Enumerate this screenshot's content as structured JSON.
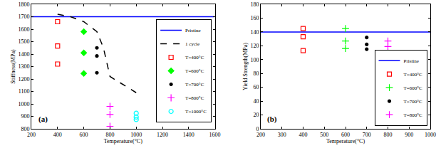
{
  "chart_data": [
    {
      "type": "scatter",
      "x_label": "Temperature(°C)",
      "y_label": "Stiffness(MPa)",
      "annotations": [
        {
          "text": "(a)"
        }
      ],
      "xlim": [
        200,
        1600
      ],
      "xticks": [
        200,
        400,
        600,
        800,
        1000,
        1200,
        1400,
        1600
      ],
      "ylim": [
        800,
        1800
      ],
      "yticks": [
        800,
        900,
        1000,
        1100,
        1200,
        1300,
        1400,
        1500,
        1600,
        1700,
        1800
      ],
      "grid": false,
      "legend": "upper right",
      "series": [
        {
          "name": "Pristine",
          "type": "line",
          "color": "#0000ff",
          "line_style": "solid",
          "x": [
            200,
            1600
          ],
          "values": [
            1700,
            1700
          ]
        },
        {
          "name": "1 cycle",
          "type": "line",
          "color": "#000000",
          "line_style": "dash",
          "x": [
            400,
            500,
            600,
            700,
            750,
            800,
            1000
          ],
          "values": [
            1720,
            1700,
            1660,
            1580,
            1450,
            1220,
            1090
          ]
        },
        {
          "name": "T=400°C",
          "type": "scatter",
          "color": "#ff0000",
          "marker": "square-open",
          "x": [
            400,
            400,
            400
          ],
          "values": [
            1660,
            1465,
            1320
          ]
        },
        {
          "name": "T=600°C",
          "type": "scatter",
          "color": "#00ff00",
          "marker": "diamond",
          "x": [
            600,
            600,
            600
          ],
          "values": [
            1580,
            1410,
            1245
          ]
        },
        {
          "name": "T=700°C",
          "type": "scatter",
          "color": "#000000",
          "marker": "circle",
          "x": [
            700,
            700,
            700
          ],
          "values": [
            1450,
            1385,
            1250
          ]
        },
        {
          "name": "T=800°C",
          "type": "scatter",
          "color": "#ff00ff",
          "marker": "cross",
          "x": [
            800,
            800,
            800
          ],
          "values": [
            980,
            915,
            820
          ]
        },
        {
          "name": "T=1000°C",
          "type": "scatter",
          "color": "#00ffff",
          "marker": "circle-open",
          "x": [
            1000,
            1000,
            1000
          ],
          "values": [
            925,
            895,
            875
          ]
        }
      ]
    },
    {
      "type": "scatter",
      "x_label": "Temperature(°C)",
      "y_label": "Yield Strength(MPa)",
      "annotations": [
        {
          "text": "(b)"
        }
      ],
      "xlim": [
        200,
        1000
      ],
      "xticks": [
        200,
        300,
        400,
        500,
        600,
        700,
        800,
        900,
        1000
      ],
      "ylim": [
        0,
        180
      ],
      "yticks": [
        0,
        20,
        40,
        60,
        80,
        100,
        120,
        140,
        160,
        180
      ],
      "grid": false,
      "legend": "lower right",
      "series": [
        {
          "name": "Pristine",
          "type": "line",
          "color": "#0000ff",
          "line_style": "solid",
          "x": [
            200,
            1000
          ],
          "values": [
            140,
            140
          ]
        },
        {
          "name": "T=400°C",
          "type": "scatter",
          "color": "#ff0000",
          "marker": "square-open",
          "x": [
            400,
            400,
            400
          ],
          "values": [
            145,
            133,
            113
          ]
        },
        {
          "name": "T=600°C",
          "type": "scatter",
          "color": "#00ff00",
          "marker": "cross",
          "x": [
            600,
            600,
            600
          ],
          "values": [
            145,
            127,
            116
          ]
        },
        {
          "name": "T=700°C",
          "type": "scatter",
          "color": "#000000",
          "marker": "circle",
          "x": [
            700,
            700,
            700
          ],
          "values": [
            132,
            122,
            115
          ]
        },
        {
          "name": "T=800°C",
          "type": "scatter",
          "color": "#ff00ff",
          "marker": "cross",
          "x": [
            800,
            800,
            800
          ],
          "values": [
            127,
            119,
            110
          ]
        }
      ]
    }
  ]
}
